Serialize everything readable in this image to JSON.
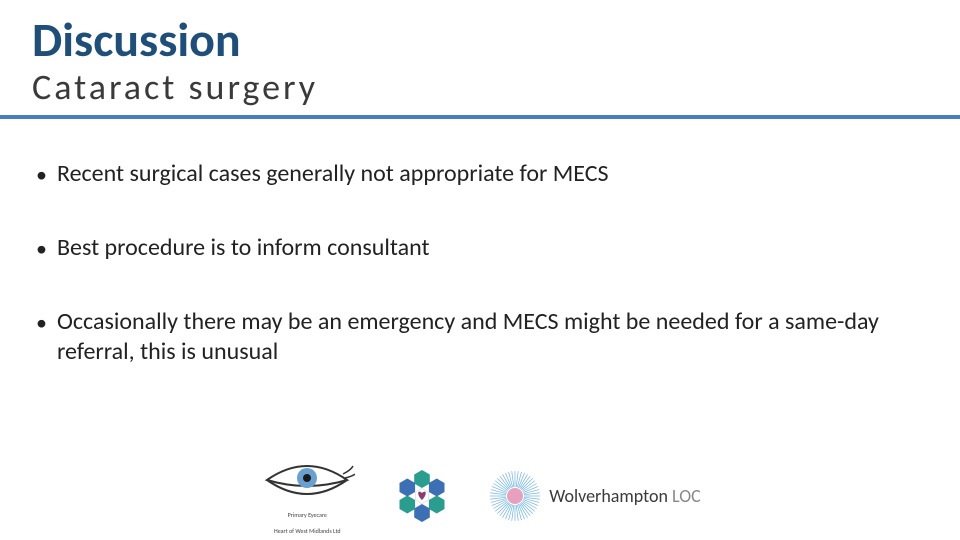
{
  "colors": {
    "title": "#1f4e79",
    "subtitle": "#3a3a3a",
    "rule": "#4a7ebb",
    "bullet_text": "#222222",
    "background": "#ffffff",
    "loc_bold": "#3a3a3a",
    "loc_light": "#888888",
    "hex_teal": "#2a9d8f",
    "hex_blue": "#3c6fb3",
    "hex_heart": "#8a3c6f",
    "burst_core": "#e8a0c0",
    "burst_ray": "#4aa0d8"
  },
  "typography": {
    "title_size": 48,
    "subtitle_size": 36,
    "subtitle_letter_spacing": 3,
    "body_size": 24,
    "body_line_height": 1.25
  },
  "header": {
    "title": "Discussion",
    "subtitle": "Cataract surgery"
  },
  "bullets": [
    "Recent surgical cases generally not appropriate for MECS",
    "Best procedure is to inform consultant",
    "Occasionally there may be an emergency and MECS might be needed for a same-day referral, this is unusual"
  ],
  "footer": {
    "eye_caption_line1": "Primary Eyecare",
    "eye_caption_line2": "Heart of West Midlands Ltd",
    "loc_bold": "Wolverhampton",
    "loc_light": " LOC"
  }
}
